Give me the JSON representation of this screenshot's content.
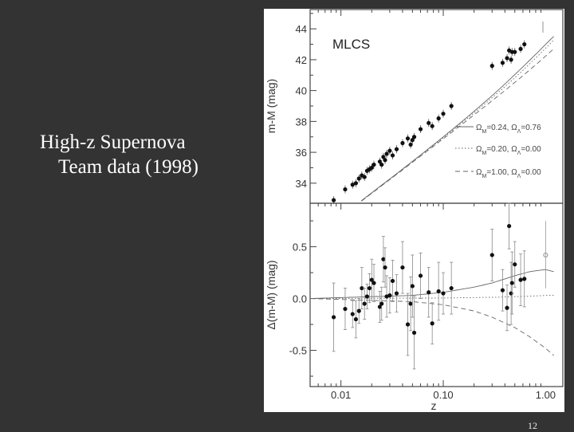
{
  "slide": {
    "caption_line1": "High-z Supernova",
    "caption_line2": "Team data (1998)",
    "slide_number": "12"
  },
  "colors": {
    "background": "#333333",
    "plot_bg": "#ffffff",
    "points": "#000000",
    "curves": "#555555"
  },
  "chart_data": [
    {
      "type": "scatter",
      "title": "MLCS",
      "xlabel": "z",
      "ylabel": "m-M (mag)",
      "xscale": "log",
      "xlim": [
        0.005,
        1.5
      ],
      "ylim": [
        32.7,
        45.3
      ],
      "yticks": [
        "34",
        "36",
        "38",
        "40",
        "42",
        "44"
      ],
      "legend": [
        {
          "label": "Ω",
          "sub": "M",
          "value": "=0.24, ",
          "label2": "Ω",
          "sub2": "Λ",
          "value2": "=0.76",
          "style": "solid"
        },
        {
          "label": "Ω",
          "sub": "M",
          "value": "=0.20, ",
          "label2": "Ω",
          "sub2": "Λ",
          "value2": "=0.00",
          "style": "dotted"
        },
        {
          "label": "Ω",
          "sub": "M",
          "value": "=1.00, ",
          "label2": "Ω",
          "sub2": "Λ",
          "value2": "=0.00",
          "style": "dashed"
        }
      ],
      "legend_position": "right",
      "x": [
        0.0085,
        0.011,
        0.013,
        0.014,
        0.015,
        0.016,
        0.017,
        0.018,
        0.019,
        0.02,
        0.021,
        0.024,
        0.025,
        0.026,
        0.027,
        0.028,
        0.03,
        0.032,
        0.035,
        0.04,
        0.045,
        0.048,
        0.05,
        0.052,
        0.06,
        0.072,
        0.078,
        0.09,
        0.1,
        0.12,
        0.3,
        0.38,
        0.42,
        0.44,
        0.46,
        0.47,
        0.5,
        0.57,
        0.62
      ],
      "y": [
        32.9,
        33.6,
        33.9,
        34.0,
        34.3,
        34.5,
        34.4,
        34.8,
        34.9,
        35.0,
        35.2,
        35.4,
        35.2,
        35.7,
        35.5,
        35.9,
        36.1,
        35.8,
        36.2,
        36.6,
        36.9,
        36.5,
        36.8,
        37.0,
        37.5,
        37.9,
        37.7,
        38.2,
        38.5,
        39.0,
        41.6,
        41.8,
        42.1,
        42.6,
        42.0,
        42.5,
        42.5,
        42.7,
        43.0
      ]
    },
    {
      "type": "scatter",
      "xlabel": "z",
      "ylabel": "Δ(m-M) (mag)",
      "xscale": "log",
      "xlim": [
        0.005,
        1.5
      ],
      "ylim": [
        -0.85,
        0.92
      ],
      "yticks": [
        "-0.5",
        "0.0",
        "0.5"
      ],
      "xticks": [
        "0.01",
        "0.10",
        "1.00"
      ],
      "x": [
        0.0085,
        0.011,
        0.013,
        0.014,
        0.015,
        0.016,
        0.017,
        0.018,
        0.019,
        0.02,
        0.021,
        0.024,
        0.025,
        0.026,
        0.027,
        0.028,
        0.03,
        0.032,
        0.035,
        0.04,
        0.045,
        0.048,
        0.05,
        0.052,
        0.06,
        0.072,
        0.078,
        0.09,
        0.1,
        0.12,
        0.3,
        0.38,
        0.42,
        0.44,
        0.46,
        0.47,
        0.5,
        0.57,
        0.62
      ],
      "y": [
        -0.18,
        -0.1,
        -0.15,
        -0.2,
        -0.12,
        0.1,
        -0.05,
        0.02,
        0.1,
        0.18,
        0.15,
        -0.08,
        -0.05,
        0.38,
        0.3,
        0.02,
        0.03,
        0.17,
        0.05,
        0.3,
        -0.25,
        -0.05,
        0.12,
        -0.33,
        0.22,
        0.06,
        -0.24,
        0.07,
        0.05,
        0.1,
        0.42,
        0.08,
        -0.09,
        0.7,
        0.05,
        0.15,
        0.33,
        0.18,
        0.19
      ],
      "err": [
        0.33,
        0.2,
        0.13,
        0.18,
        0.12,
        0.2,
        0.15,
        0.12,
        0.14,
        0.2,
        0.18,
        0.15,
        0.16,
        0.22,
        0.19,
        0.2,
        0.17,
        0.2,
        0.18,
        0.25,
        0.3,
        0.26,
        0.3,
        0.35,
        0.22,
        0.24,
        0.2,
        0.28,
        0.2,
        0.25,
        0.25,
        0.2,
        0.22,
        0.22,
        0.3,
        0.3,
        0.22,
        0.25,
        0.27
      ],
      "curves": {
        "solid": {
          "z": [
            0.005,
            0.05,
            0.1,
            0.2,
            0.3,
            0.5,
            0.7,
            1.0,
            1.2
          ],
          "dm": [
            0.0,
            0.03,
            0.06,
            0.11,
            0.15,
            0.22,
            0.26,
            0.28,
            0.26
          ]
        },
        "dotted": {
          "z": [
            0.005,
            0.1,
            0.3,
            0.6,
            1.0,
            1.2
          ],
          "dm": [
            0.0,
            0.005,
            0.012,
            0.02,
            0.03,
            0.03
          ]
        },
        "dashed": {
          "z": [
            0.005,
            0.05,
            0.1,
            0.2,
            0.3,
            0.5,
            0.7,
            1.0,
            1.2
          ],
          "dm": [
            0.0,
            -0.03,
            -0.06,
            -0.12,
            -0.18,
            -0.28,
            -0.37,
            -0.48,
            -0.55
          ]
        }
      }
    }
  ]
}
